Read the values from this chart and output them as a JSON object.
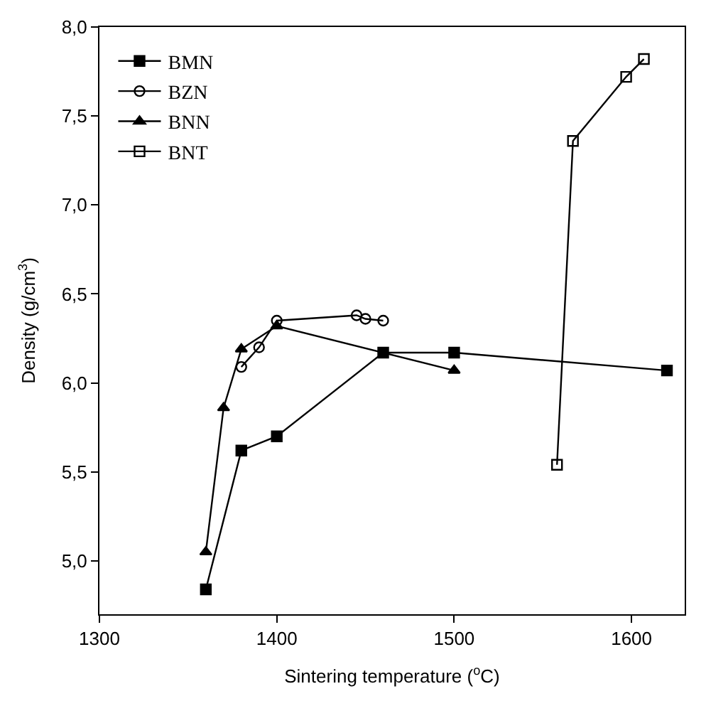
{
  "chart_data": {
    "type": "line",
    "xlabel": "Sintering temperature ($^{o}$C)",
    "ylabel": "Density (g/cm$^{3}$)",
    "xlim": [
      1300,
      1630
    ],
    "xticks": [
      1300,
      1400,
      1500,
      1600
    ],
    "ylim": [
      4.7,
      8.0
    ],
    "yticks": [
      {
        "value": 5.0,
        "label": "5,0"
      },
      {
        "value": 5.5,
        "label": "5,5"
      },
      {
        "value": 6.0,
        "label": "6,0"
      },
      {
        "value": 6.5,
        "label": "6,5"
      },
      {
        "value": 7.0,
        "label": "7,0"
      },
      {
        "value": 7.5,
        "label": "7,5"
      },
      {
        "value": 8.0,
        "label": "8,0"
      }
    ],
    "legend": "top left",
    "line_style": "solid",
    "series": [
      {
        "name": "BMN",
        "color": "#000000",
        "marker": "square",
        "x": [
          1360,
          1380,
          1400,
          1460,
          1500,
          1620
        ],
        "values": [
          4.84,
          5.62,
          5.7,
          6.17,
          6.17,
          6.07
        ]
      },
      {
        "name": "BZN",
        "color": "#000000",
        "marker": "circle-open",
        "x": [
          1380,
          1390,
          1400,
          1445,
          1450,
          1460
        ],
        "values": [
          6.09,
          6.2,
          6.35,
          6.38,
          6.36,
          6.35
        ]
      },
      {
        "name": "BNN",
        "color": "#000000",
        "marker": "triangle",
        "x": [
          1360,
          1370,
          1380,
          1400,
          1500
        ],
        "values": [
          5.05,
          5.86,
          6.19,
          6.32,
          6.07
        ]
      },
      {
        "name": "BNT",
        "color": "#000000",
        "marker": "square-open",
        "x": [
          1558,
          1567,
          1597,
          1607
        ],
        "values": [
          5.54,
          7.36,
          7.72,
          7.82
        ]
      }
    ]
  }
}
